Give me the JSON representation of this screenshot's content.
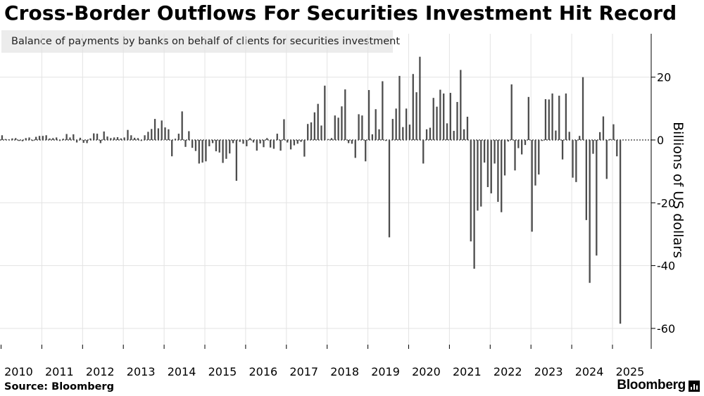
{
  "header": {
    "title": "Cross-Border Outflows For Securities Investment Hit Record"
  },
  "legend": {
    "label": "Balance of payments by banks on behalf of clients for securities investment",
    "color": "#4d4d4d"
  },
  "footer": {
    "source": "Source: Bloomberg",
    "brand": "Bloomberg"
  },
  "chart_data": {
    "type": "bar",
    "title": "Cross-Border Outflows For Securities Investment Hit Record",
    "ylabel": "Billions of US dollars",
    "ylim": [
      -66,
      34
    ],
    "y_ticks": [
      20,
      0,
      -20,
      -40,
      -60
    ],
    "grid": true,
    "legend_position": "top-left",
    "y_axis_position": "right",
    "x_tick_labels": [
      "2010",
      "2011",
      "2012",
      "2013",
      "2014",
      "2015",
      "2016",
      "2017",
      "2018",
      "2019",
      "2020",
      "2021",
      "2022",
      "2023",
      "2024",
      "2025"
    ],
    "x_start": "2010-01",
    "series": [
      {
        "name": "Balance of payments by banks on behalf of clients for securities investment",
        "color": "#4d4d4d",
        "values": [
          1.5,
          0.3,
          0.2,
          0.5,
          0.6,
          -0.3,
          -0.4,
          0.6,
          0.8,
          -0.3,
          1.0,
          1.3,
          1.3,
          1.5,
          0.5,
          0.6,
          0.8,
          -0.3,
          0.4,
          1.9,
          0.8,
          1.8,
          -0.8,
          0.7,
          -0.9,
          -1.0,
          0.5,
          2.1,
          2.0,
          -1.0,
          2.7,
          1.1,
          0.6,
          0.8,
          0.9,
          0.5,
          0.8,
          3.2,
          1.5,
          0.7,
          0.6,
          -0.3,
          1.5,
          2.6,
          3.5,
          6.7,
          3.7,
          6.2,
          4.0,
          3.4,
          -5.2,
          0.4,
          2.0,
          9.1,
          -2.2,
          2.8,
          -2.5,
          -3.5,
          -7.5,
          -7.2,
          -6.8,
          -2.0,
          -1.0,
          -3.6,
          -4.0,
          -7.3,
          -6.0,
          -4.3,
          -1.0,
          -13.0,
          -0.6,
          -1.2,
          -2.0,
          0.6,
          -0.8,
          -3.4,
          -1.1,
          -2.3,
          0.6,
          -2.4,
          -2.8,
          2.0,
          -3.4,
          6.6,
          -0.8,
          -3.0,
          -1.7,
          -1.2,
          -0.6,
          -5.3,
          5.1,
          5.6,
          8.8,
          11.5,
          4.6,
          17.3,
          0.3,
          0.6,
          7.8,
          7.1,
          10.7,
          16.1,
          -1.0,
          -1.2,
          -5.7,
          8.2,
          7.8,
          -6.8,
          15.9,
          1.8,
          9.8,
          3.4,
          18.7,
          -0.3,
          -31.0,
          6.7,
          10.0,
          20.4,
          4.1,
          10.0,
          4.9,
          21.0,
          15.2,
          26.5,
          -7.5,
          3.4,
          3.9,
          13.4,
          10.6,
          16.0,
          14.8,
          5.3,
          15.0,
          2.9,
          12.1,
          22.3,
          3.4,
          7.4,
          -32.3,
          -41.0,
          -22.5,
          -21.2,
          -7.2,
          -15.0,
          -17.0,
          -7.5,
          -19.7,
          -23.0,
          -11.3,
          -0.5,
          17.7,
          -9.7,
          -2.6,
          -4.6,
          -1.6,
          13.7,
          -29.2,
          -14.5,
          -11.0,
          -0.3,
          13.0,
          12.9,
          14.8,
          3.0,
          14.1,
          -6.2,
          14.8,
          2.6,
          -12.0,
          -13.4,
          1.3,
          20.0,
          -25.5,
          -45.5,
          -4.4,
          -36.8,
          2.5,
          7.5,
          -12.4,
          0.3,
          5.0,
          -5.2,
          -58.5
        ]
      }
    ]
  }
}
